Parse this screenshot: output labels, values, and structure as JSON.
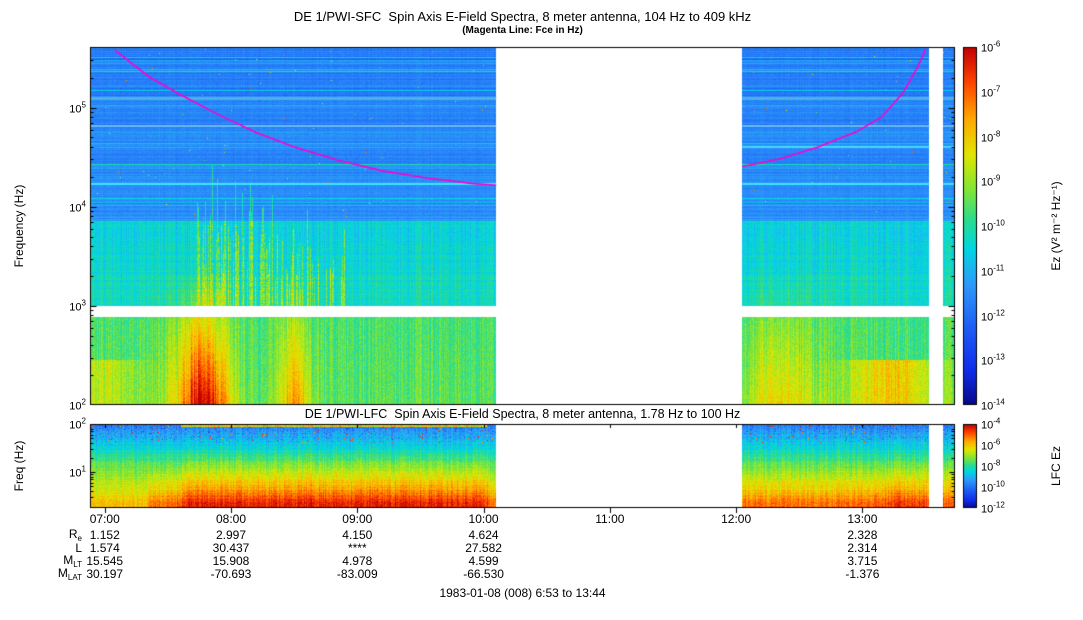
{
  "chart_data": [
    {
      "type": "heatmap",
      "instrument": "DE 1/PWI-SFC",
      "title": "DE 1/PWI-SFC  Spin Axis E-Field Spectra, 8 meter antenna, 104 Hz to 409 kHz",
      "subtitle": "(Magenta Line: Fce in Hz)",
      "ylabel": "Frequency (Hz)",
      "colorbar_label": "Ez (V² m⁻² Hz⁻¹)",
      "y_scale": "log",
      "y_range_hz": [
        100,
        409000
      ],
      "y_tick_exponents": [
        5,
        4,
        3,
        2
      ],
      "colorbar_tick_exponents": [
        -6,
        -7,
        -8,
        -9,
        -10,
        -11,
        -12,
        -13,
        -14
      ],
      "time_start": "6:53",
      "time_end": "13:44",
      "time_start_hours": 6.8833,
      "time_end_hours": 13.7333,
      "time_ticks": [
        {
          "label": "07:00",
          "hour": 7
        },
        {
          "label": "08:00",
          "hour": 8
        },
        {
          "label": "09:00",
          "hour": 9
        },
        {
          "label": "10:00",
          "hour": 10
        },
        {
          "label": "11:00",
          "hour": 11
        },
        {
          "label": "12:00",
          "hour": 12
        },
        {
          "label": "13:00",
          "hour": 13
        }
      ],
      "data_gaps_hours": [
        [
          10.1,
          12.05
        ],
        [
          13.53,
          13.64
        ]
      ],
      "white_band_hz": [
        776,
        1005
      ],
      "horizontal_lines": [
        {
          "f_hz": 17000,
          "color": "#3fe5ff"
        },
        {
          "f_hz": 40000,
          "color": "#45d8f8",
          "from_hour": 12.0
        },
        {
          "f_hz": 66000,
          "color": "#66bcf0"
        },
        {
          "f_hz": 125000,
          "color": "#5da8ec"
        }
      ],
      "fce_line": {
        "color": "#ff00cc",
        "segments_hour_hz": [
          [
            [
              7.08,
              380000
            ],
            [
              7.35,
              205000
            ],
            [
              7.6,
              135000
            ],
            [
              7.9,
              85000
            ],
            [
              8.2,
              56000
            ],
            [
              8.5,
              40000
            ],
            [
              8.85,
              29500
            ],
            [
              9.2,
              23000
            ],
            [
              9.55,
              19500
            ],
            [
              9.9,
              17200
            ],
            [
              10.1,
              16500
            ]
          ],
          [
            [
              12.05,
              25500
            ],
            [
              12.35,
              30500
            ],
            [
              12.65,
              40000
            ],
            [
              12.95,
              57000
            ],
            [
              13.15,
              80000
            ],
            [
              13.32,
              140000
            ],
            [
              13.44,
              260000
            ],
            [
              13.5,
              390000
            ]
          ]
        ]
      },
      "features": [
        "intense broadband burst 07:30-08:45 below ~1 kHz reaching red levels",
        "vertical spike structures 07:50-08:50 extending up to ~40 kHz",
        "quasi-steady cyan emission line near 17 kHz",
        "horizontally banded blue continuum above ~7 kHz",
        "moderate low-frequency enhancement 12:10-12:40 and near 13:15"
      ]
    },
    {
      "type": "heatmap",
      "instrument": "DE 1/PWI-LFC",
      "title": "DE 1/PWI-LFC  Spin Axis E-Field Spectra, 8 meter antenna, 1.78 Hz to 100 Hz",
      "ylabel": "Freq (Hz)",
      "colorbar_label": "LFC Ez",
      "y_scale": "log",
      "y_range_hz": [
        1.78,
        100
      ],
      "y_tick_exponents": [
        2,
        1
      ],
      "colorbar_tick_exponents": [
        -4,
        -6,
        -8,
        -10,
        -12
      ],
      "data_gaps_hours": [
        [
          10.1,
          12.05
        ],
        [
          13.53,
          13.64
        ]
      ],
      "features": [
        "intense red band below ~6 Hz for the whole pass",
        "red/orange levels extend to ~20 Hz during the 07:30-10:00 burst",
        "blue speckled band 50-100 Hz with dark red top line during burst"
      ]
    }
  ],
  "ephemeris": {
    "rows": [
      {
        "label": "R",
        "sub": "e",
        "values": [
          "1.152",
          "2.997",
          "4.150",
          "4.624",
          "",
          "",
          "2.328"
        ]
      },
      {
        "label": "L",
        "sub": "",
        "values": [
          "1.574",
          "30.437",
          "****",
          "27.582",
          "",
          "",
          "2.314"
        ]
      },
      {
        "label": "M",
        "sub": "LT",
        "values": [
          "15.545",
          "15.908",
          "4.978",
          "4.599",
          "",
          "",
          "3.715"
        ]
      },
      {
        "label": "M",
        "sub": "LAT",
        "values": [
          "30.197",
          "-70.693",
          "-83.009",
          "-66.530",
          "",
          "",
          "-1.376"
        ]
      }
    ]
  },
  "footer": {
    "date_line": "1983-01-08 (008) 6:53 to 13:44"
  }
}
